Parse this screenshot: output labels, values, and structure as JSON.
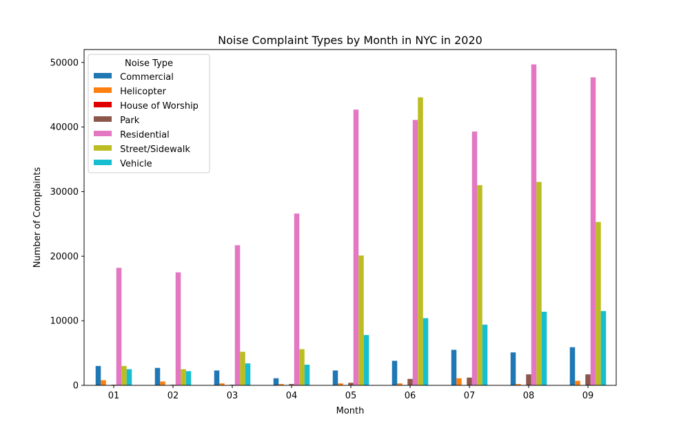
{
  "chart_data": {
    "type": "bar",
    "title": "Noise Complaint Types by Month in NYC in 2020",
    "xlabel": "Month",
    "ylabel": "Number of Complaints",
    "categories": [
      "01",
      "02",
      "03",
      "04",
      "05",
      "06",
      "07",
      "08",
      "09"
    ],
    "ylim": [
      0,
      52000
    ],
    "yticks": [
      0,
      10000,
      20000,
      30000,
      40000,
      50000
    ],
    "legend": {
      "title": "Noise Type",
      "placement": "upper-left"
    },
    "grid": false,
    "series": [
      {
        "name": " Commercial",
        "color": "#1f77b4",
        "values": [
          3000,
          2700,
          2300,
          1100,
          2300,
          3800,
          5500,
          5100,
          5900
        ]
      },
      {
        "name": " Helicopter",
        "color": "#ff7f0e",
        "values": [
          800,
          600,
          300,
          200,
          300,
          300,
          1100,
          200,
          700
        ]
      },
      {
        "name": " House of Worship",
        "color": "#e00000",
        "values": [
          30,
          30,
          30,
          20,
          20,
          30,
          40,
          40,
          50
        ]
      },
      {
        "name": " Park",
        "color": "#8c564b",
        "values": [
          100,
          100,
          100,
          200,
          400,
          1000,
          1200,
          1700,
          1700
        ]
      },
      {
        "name": " Residential",
        "color": "#e377c2",
        "values": [
          18200,
          17500,
          21700,
          26600,
          42700,
          41100,
          39300,
          49700,
          47700
        ]
      },
      {
        "name": " Street/Sidewalk",
        "color": "#bcbd22",
        "values": [
          3000,
          2500,
          5200,
          5600,
          20100,
          44600,
          31000,
          31500,
          25300
        ]
      },
      {
        "name": " Vehicle",
        "color": "#17becf",
        "values": [
          2500,
          2200,
          3400,
          3200,
          7800,
          10400,
          9400,
          11400,
          11500
        ]
      }
    ]
  }
}
